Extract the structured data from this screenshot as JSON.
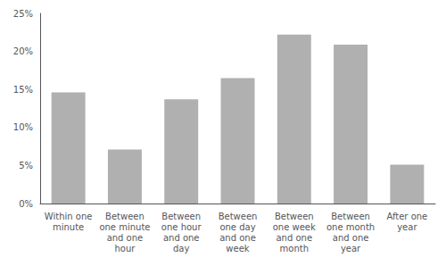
{
  "chart_data": {
    "type": "bar",
    "categories": [
      "Within one\nminute",
      "Between\none minute\nand one\nhour",
      "Between\none hour\nand one\nday",
      "Between\none day\nand one\nweek",
      "Between\none week\nand one\nmonth",
      "Between\none month\nand one\nyear",
      "After one\nyear"
    ],
    "values": [
      14.6,
      7.1,
      13.7,
      16.5,
      22.2,
      20.9,
      5.1
    ],
    "color": "#b0b0b0",
    "ylim": [
      0,
      25
    ],
    "yticks": [
      {
        "value": 0,
        "label": "0%"
      },
      {
        "value": 5,
        "label": "5%"
      },
      {
        "value": 10,
        "label": "10%"
      },
      {
        "value": 15,
        "label": "15%"
      },
      {
        "value": 20,
        "label": "20%"
      },
      {
        "value": 25,
        "label": "25%"
      }
    ],
    "grid": false
  }
}
